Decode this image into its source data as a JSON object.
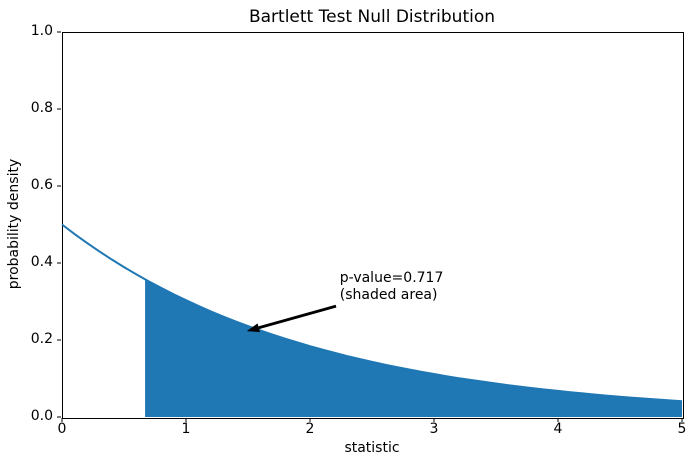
{
  "chart_data": {
    "type": "area",
    "title": "Bartlett Test Null Distribution",
    "xlabel": "statistic",
    "ylabel": "probability density",
    "xlim": [
      0,
      5
    ],
    "ylim": [
      0,
      1.0
    ],
    "grid": false,
    "legend": "none",
    "x_tick_labels": [
      "0",
      "1",
      "2",
      "3",
      "4",
      "5"
    ],
    "y_tick_labels": [
      "0.0",
      "0.2",
      "0.4",
      "0.6",
      "0.8",
      "1.0"
    ],
    "line_color": "#1f77b4",
    "fill_color": "#1f77b4",
    "axis_color": "#000000",
    "curve": {
      "x": [
        0.0,
        0.1,
        0.2,
        0.3,
        0.4,
        0.5,
        0.6,
        0.7,
        0.8,
        0.9,
        1.0,
        1.1,
        1.2,
        1.3,
        1.4,
        1.5,
        1.6,
        1.7,
        1.8,
        1.9,
        2.0,
        2.1,
        2.2,
        2.3,
        2.4,
        2.5,
        2.6,
        2.7,
        2.8,
        2.9,
        3.0,
        3.1,
        3.2,
        3.3,
        3.4,
        3.5,
        3.6,
        3.7,
        3.8,
        3.9,
        4.0,
        4.1,
        4.2,
        4.3,
        4.4,
        4.5,
        4.6,
        4.7,
        4.8,
        4.9,
        5.0
      ],
      "y": [
        0.5,
        0.4756,
        0.4524,
        0.4304,
        0.4094,
        0.3894,
        0.3704,
        0.3523,
        0.3352,
        0.3188,
        0.3033,
        0.2885,
        0.2744,
        0.261,
        0.2483,
        0.2362,
        0.2247,
        0.2137,
        0.2033,
        0.1934,
        0.1839,
        0.175,
        0.1664,
        0.1583,
        0.1506,
        0.1432,
        0.1362,
        0.1296,
        0.1233,
        0.1173,
        0.1116,
        0.1061,
        0.1009,
        0.096,
        0.0913,
        0.0869,
        0.0826,
        0.0786,
        0.0748,
        0.0711,
        0.0677,
        0.0644,
        0.0612,
        0.0582,
        0.0554,
        0.0527,
        0.0501,
        0.0477,
        0.0454,
        0.0431,
        0.041
      ]
    },
    "shaded_region": {
      "from": 0.67,
      "to": 5.0,
      "p_value": 0.717
    },
    "annotation": {
      "line1": "p-value=0.717",
      "line2": "(shaded area)",
      "text_xy": [
        2.24,
        0.383
      ],
      "arrow_tail_xy": [
        2.21,
        0.288
      ],
      "arrow_tip_xy": [
        1.49,
        0.223
      ],
      "arrow_color": "#000000"
    }
  }
}
